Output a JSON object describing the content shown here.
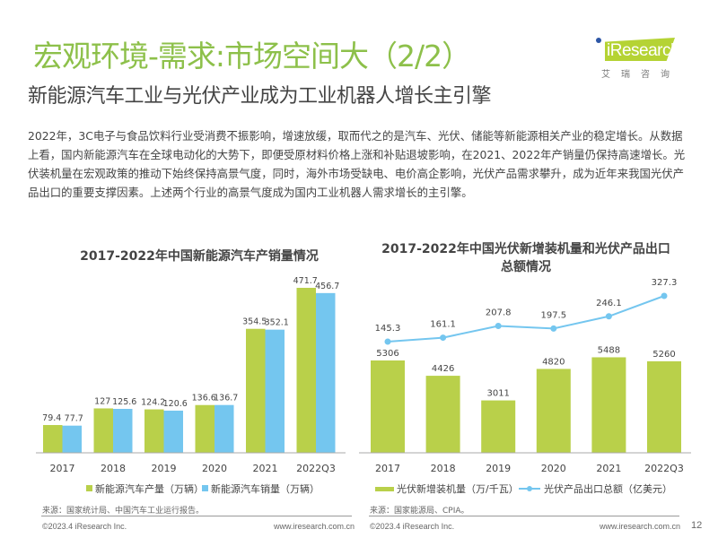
{
  "header": {
    "title": "宏观环境-需求:市场空间大（2/2）",
    "subtitle": "新能源汽车工业与光伏产业成为工业机器人增长主引擎"
  },
  "logo": {
    "brand": "iResearch",
    "cn": "艾瑞咨询",
    "accent": "#b5d334",
    "dot": "#2d56a6"
  },
  "body_text": "2022年，3C电子与食品饮料行业受消费不振影响，增速放缓，取而代之的是汽车、光伏、储能等新能源相关产业的稳定增长。从数据上看，国内新能源汽车在全球电动化的大势下，即便受原材料价格上涨和补贴退坡影响，在2021、2022年产销量仍保持高速增长。光伏装机量在宏观政策的推动下始终保持高景气度，同时，海外市场受缺电、电价高企影响，光伏产品需求攀升，成为近年来我国光伏产品出口的重要支撑因素。上述两个行业的高景气度成为国内工业机器人需求增长的主引擎。",
  "colors": {
    "title_green": "#8dc04a",
    "bar_green": "#b9d04a",
    "bar_blue": "#74c6ef",
    "line_blue": "#74c6ef"
  },
  "chart_data": [
    {
      "type": "bar",
      "title": "2017-2022年中国新能源汽车产销量情况",
      "categories": [
        "2017",
        "2018",
        "2019",
        "2020",
        "2021",
        "2022Q3"
      ],
      "series": [
        {
          "name": "新能源汽车产量（万辆）",
          "values": [
            79.4,
            127,
            124.2,
            136.6,
            354.5,
            471.7
          ],
          "labels": [
            "79.4",
            "127",
            "124.2",
            "136.6",
            "354.5",
            "471.7"
          ]
        },
        {
          "name": "新能源汽车销量（万辆）",
          "values": [
            77.7,
            125.6,
            120.6,
            136.7,
            352.1,
            456.7
          ],
          "labels": [
            "77.7",
            "125.6",
            "120.6",
            "136.7",
            "352.1",
            "456.7"
          ]
        }
      ],
      "ylim": [
        0,
        480
      ],
      "grid": false,
      "legend": "bottom",
      "source": "来源：国家统计局、中国汽车工业运行报告。"
    },
    {
      "type": "bar+line",
      "title": "2017-2022年中国光伏新增装机量和光伏产品出口总额情况",
      "title_lines": [
        "2017-2022年中国光伏新增装机量和光伏产品出口",
        "总额情况"
      ],
      "categories": [
        "2017",
        "2018",
        "2019",
        "2020",
        "2021",
        "2022Q3"
      ],
      "series": [
        {
          "name": "光伏新增装机量（万/千瓦）",
          "kind": "bar",
          "values": [
            5306,
            4426,
            3011,
            4820,
            5488,
            5260
          ],
          "labels": [
            "5306",
            "4426",
            "3011",
            "4820",
            "5488",
            "5260"
          ]
        },
        {
          "name": "光伏产品出口总额（亿美元）",
          "kind": "line",
          "values": [
            145.3,
            161.1,
            207.8,
            197.5,
            246.1,
            327.3
          ],
          "labels": [
            "145.3",
            "161.1",
            "207.8",
            "197.5",
            "246.1",
            "327.3"
          ]
        }
      ],
      "grid": false,
      "legend": "bottom",
      "source": "来源：国家能源局、CPIA。"
    }
  ],
  "footer": {
    "copyright": "©2023.4 iResearch Inc.",
    "url": "www.iresearch.com.cn",
    "page": "12"
  }
}
